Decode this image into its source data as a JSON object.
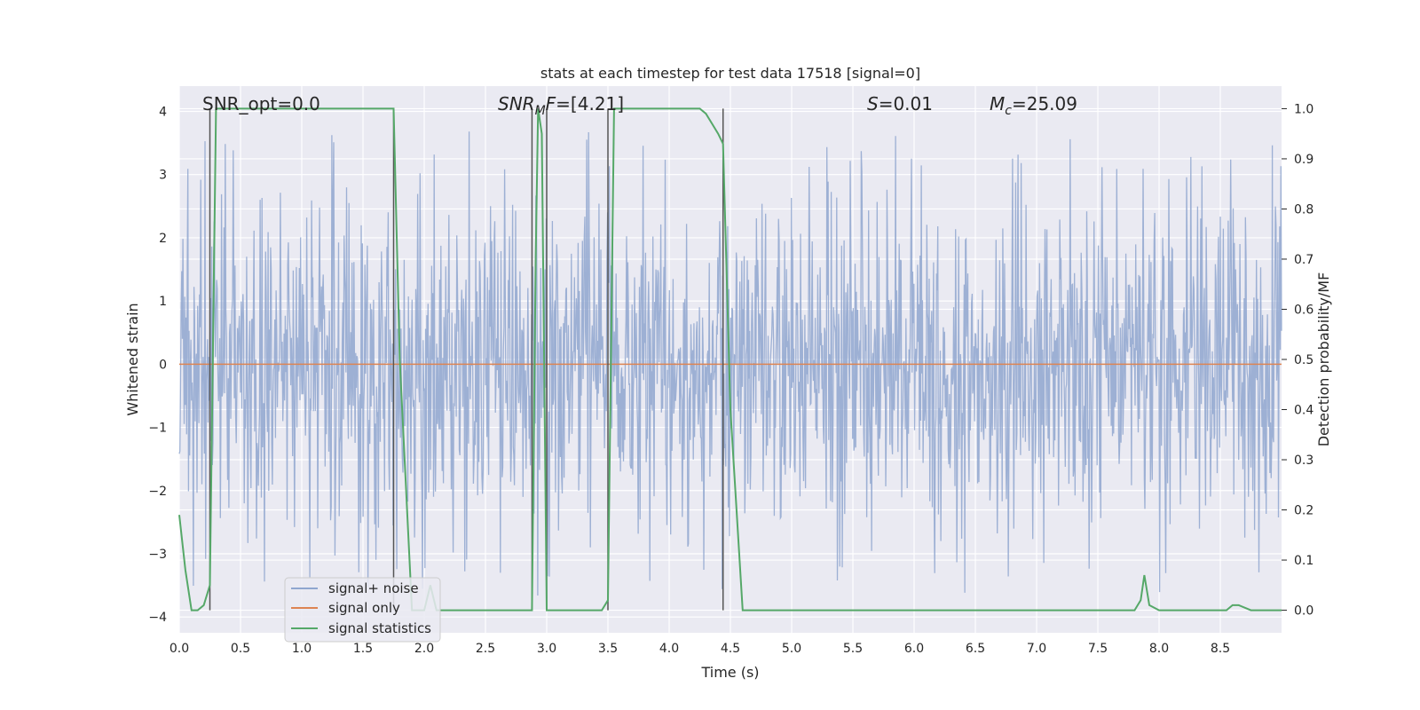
{
  "chart_data": {
    "type": "line",
    "title": "stats at each timestep for test data 17518 [signal=0]",
    "xlabel": "Time (s)",
    "ylabel": "Whitened strain",
    "ylabel_right": "Detection probability/MF",
    "xlim": [
      0,
      9
    ],
    "ylim": [
      -4.25,
      4.4
    ],
    "ylim_right": [
      -0.045,
      1.045
    ],
    "x_ticks": [
      0.0,
      0.5,
      1.0,
      1.5,
      2.0,
      2.5,
      3.0,
      3.5,
      4.0,
      4.5,
      5.0,
      5.5,
      6.0,
      6.5,
      7.0,
      7.5,
      8.0,
      8.5
    ],
    "x_tick_labels": [
      "0.0",
      "0.5",
      "1.0",
      "1.5",
      "2.0",
      "2.5",
      "3.0",
      "3.5",
      "4.0",
      "4.5",
      "5.0",
      "5.5",
      "6.0",
      "6.5",
      "7.0",
      "7.5",
      "8.0",
      "8.5"
    ],
    "y_ticks": [
      4,
      3,
      2,
      1,
      0,
      -1,
      -2,
      -3,
      -4
    ],
    "y_tick_labels": [
      "4",
      "3",
      "2",
      "1",
      "0",
      "−1",
      "−2",
      "−3",
      "−4"
    ],
    "y2_ticks": [
      1.0,
      0.9,
      0.8,
      0.7,
      0.6,
      0.5,
      0.4,
      0.3,
      0.2,
      0.1,
      0.0
    ],
    "y2_tick_labels": [
      "1.0",
      "0.9",
      "0.8",
      "0.7",
      "0.6",
      "0.5",
      "0.4",
      "0.3",
      "0.2",
      "0.1",
      "0.0"
    ],
    "annotations": {
      "snr_opt": "SNR_opt=0.0",
      "snr_mf_prefix": "SNR",
      "snr_mf_sub": "M",
      "snr_mf_suffix": "F=[4.21]",
      "s_italic": "S",
      "s_value": "=0.01",
      "mc_italic": "M",
      "mc_sub": "c",
      "mc_value": "=25.09"
    },
    "vertical_markers_x": [
      0.25,
      1.75,
      2.88,
      3.0,
      3.5,
      4.44
    ],
    "legend": {
      "placement": "lower-left",
      "entries": [
        "signal+ noise",
        "signal only",
        "signal statistics"
      ]
    },
    "series": [
      {
        "name": "signal+ noise",
        "axis": "left",
        "color": "#8fa6cf",
        "kind": "noise",
        "n_points": 1800,
        "typical_range": [
          -1.4,
          1.7
        ],
        "extreme_range": [
          -3.75,
          4.0
        ],
        "seed": 17518
      },
      {
        "name": "signal only",
        "axis": "left",
        "color": "#dd8452",
        "x": [
          0,
          9
        ],
        "y": [
          0,
          0
        ]
      },
      {
        "name": "signal statistics",
        "axis": "right",
        "color": "#55a868",
        "x": [
          0.0,
          0.05,
          0.1,
          0.15,
          0.2,
          0.25,
          0.3,
          0.35,
          1.7,
          1.75,
          1.8,
          1.9,
          2.0,
          2.05,
          2.1,
          2.15,
          2.2,
          2.85,
          2.88,
          2.91,
          2.93,
          2.96,
          3.0,
          3.05,
          3.1,
          3.45,
          3.5,
          3.55,
          4.2,
          4.25,
          4.3,
          4.35,
          4.4,
          4.44,
          4.5,
          4.6,
          7.8,
          7.85,
          7.88,
          7.92,
          8.0,
          8.55,
          8.6,
          8.65,
          8.75,
          9.0
        ],
        "y": [
          0.19,
          0.08,
          0.0,
          0.0,
          0.01,
          0.05,
          1.0,
          1.0,
          1.0,
          1.0,
          0.5,
          0.0,
          0.0,
          0.05,
          0.0,
          0.0,
          0.0,
          0.0,
          0.0,
          0.7,
          1.0,
          0.95,
          0.0,
          0.0,
          0.0,
          0.0,
          0.02,
          1.0,
          1.0,
          1.0,
          0.99,
          0.97,
          0.95,
          0.93,
          0.4,
          0.0,
          0.0,
          0.02,
          0.07,
          0.01,
          0.0,
          0.0,
          0.01,
          0.01,
          0.0,
          0.0
        ]
      }
    ]
  }
}
